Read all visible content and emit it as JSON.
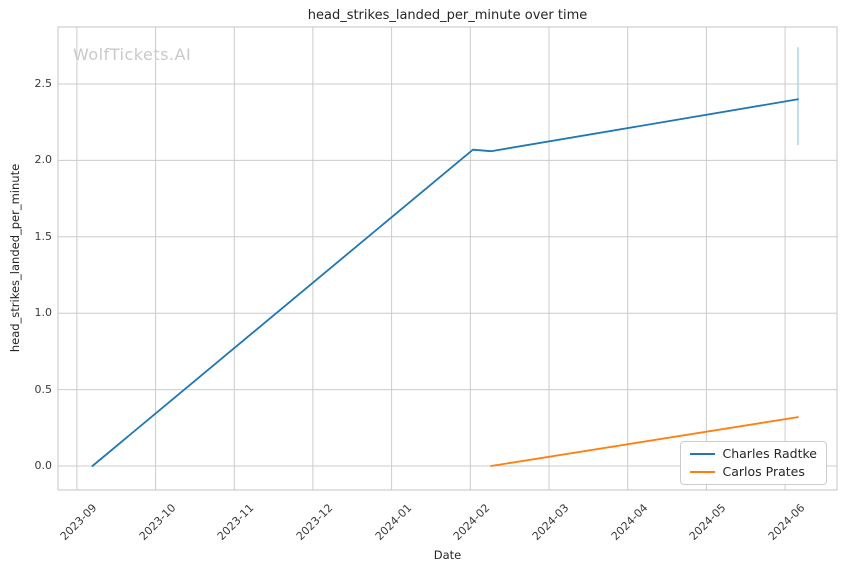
{
  "watermark": "WolfTickets.AI",
  "colors": {
    "series_blue": "#1f77b4",
    "series_orange": "#ff7f0e",
    "error_bar": "#b0d5e8",
    "grid": "#cccccc",
    "axes_border": "#c4c4c4",
    "text": "#262626",
    "watermark": "#c9c9c9"
  },
  "chart_data": {
    "type": "line",
    "title": "head_strikes_landed_per_minute over time",
    "xlabel": "Date",
    "ylabel": "head_strikes_landed_per_minute",
    "grid": true,
    "legend_position": "lower right",
    "x_tick_labels": [
      "2023-09",
      "2023-10",
      "2023-11",
      "2023-12",
      "2024-01",
      "2024-02",
      "2024-03",
      "2024-04",
      "2024-05",
      "2024-06"
    ],
    "y_tick_labels": [
      "0.0",
      "0.5",
      "1.0",
      "1.5",
      "2.0",
      "2.5"
    ],
    "ylim": [
      -0.157,
      2.873
    ],
    "xlim_months_from_2023_09": [
      -0.24,
      9.66
    ],
    "series": [
      {
        "name": "Charles Radtke",
        "color_key": "series_blue",
        "points": [
          {
            "date": "2023-09-07",
            "value": 0.0
          },
          {
            "date": "2024-02-02",
            "value": 2.07
          },
          {
            "date": "2024-02-09",
            "value": 2.06
          },
          {
            "date": "2024-06-06",
            "value": 2.4
          }
        ],
        "error_bar": {
          "date": "2024-06-06",
          "low": 2.1,
          "high": 2.74
        }
      },
      {
        "name": "Carlos Prates",
        "color_key": "series_orange",
        "points": [
          {
            "date": "2024-02-09",
            "value": 0.0
          },
          {
            "date": "2024-06-06",
            "value": 0.32
          }
        ]
      }
    ]
  }
}
